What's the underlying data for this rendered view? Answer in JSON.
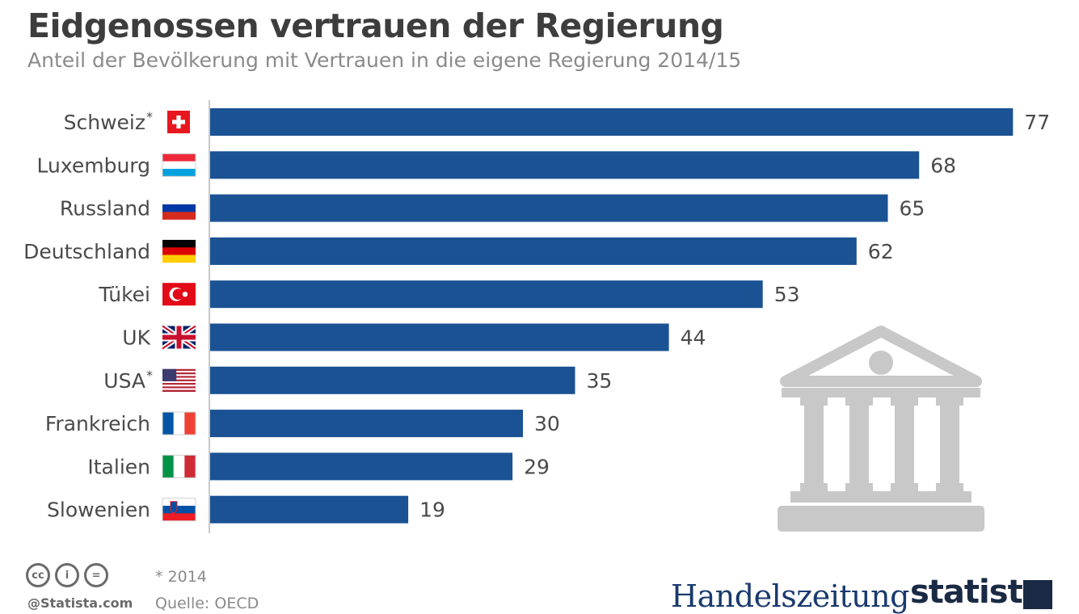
{
  "header": {
    "title": "Eidgenossen vertrauen der Regierung",
    "subtitle": "Anteil der Bevölkerung mit Vertrauen in die eigene Regierung 2014/15"
  },
  "chart_data": {
    "type": "bar",
    "orientation": "horizontal",
    "categories": [
      "Schweiz*",
      "Luxemburg",
      "Russland",
      "Deutschland",
      "Tükei",
      "UK",
      "USA*",
      "Frankreich",
      "Italien",
      "Slowenien"
    ],
    "flags": [
      "ch",
      "lu",
      "ru",
      "de",
      "tr",
      "uk",
      "us",
      "fr",
      "it",
      "si"
    ],
    "values": [
      77,
      68,
      65,
      62,
      53,
      44,
      35,
      30,
      29,
      19
    ],
    "bar_color": "#1a5293",
    "title": "Eidgenossen vertrauen der Regierung",
    "subtitle": "Anteil der Bevölkerung mit Vertrauen in die eigene Regierung 2014/15",
    "xlabel": "",
    "ylabel": "",
    "grid": false,
    "legend": "none"
  },
  "footer": {
    "note": "* 2014",
    "source": "Quelle: OECD",
    "credit": "@Statista.com",
    "license_icons": [
      "cc",
      "by",
      "nd"
    ],
    "license_glyphs": [
      "cc",
      "i",
      "="
    ],
    "brand_left": "Handelszeitung",
    "brand_right": "statista"
  },
  "icons": {
    "decoration": "government-building-icon",
    "decoration_color": "#c8c8c8"
  }
}
